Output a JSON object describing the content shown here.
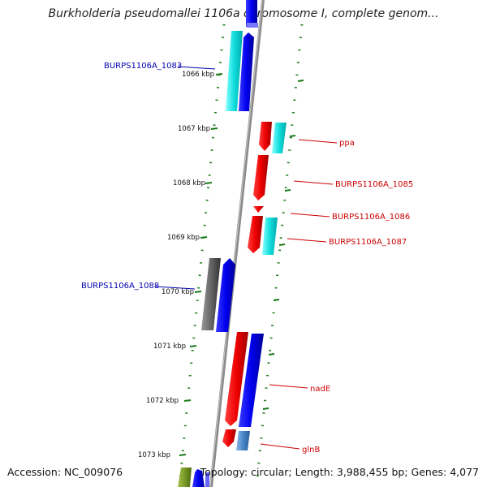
{
  "header": {
    "title": "Burkholderia pseudomallei 1106a chromosome I, complete genom..."
  },
  "footer": {
    "accession": "Accession: NC_009076",
    "summary": "Topology: circular; Length: 3,988,455 bp; Genes: 4,077"
  },
  "colors": {
    "forward_label": "#0000aa",
    "reverse_label": "#cc0000",
    "tick": "#1a7a1a",
    "backbone": "#999999"
  },
  "ticks": [
    "1066 kbp",
    "1067 kbp",
    "1068 kbp",
    "1069 kbp",
    "1070 kbp",
    "1071 kbp",
    "1072 kbp",
    "1073 kbp"
  ],
  "gene_labels": [
    {
      "text": "BURPS1106A_1083",
      "strand": "forward"
    },
    {
      "text": "ppa",
      "strand": "reverse"
    },
    {
      "text": "BURPS1106A_1085",
      "strand": "reverse"
    },
    {
      "text": "BURPS1106A_1086",
      "strand": "reverse"
    },
    {
      "text": "BURPS1106A_1087",
      "strand": "reverse"
    },
    {
      "text": "BURPS1106A_1088",
      "strand": "forward"
    },
    {
      "text": "nadE",
      "strand": "reverse"
    },
    {
      "text": "glnB",
      "strand": "reverse"
    }
  ]
}
